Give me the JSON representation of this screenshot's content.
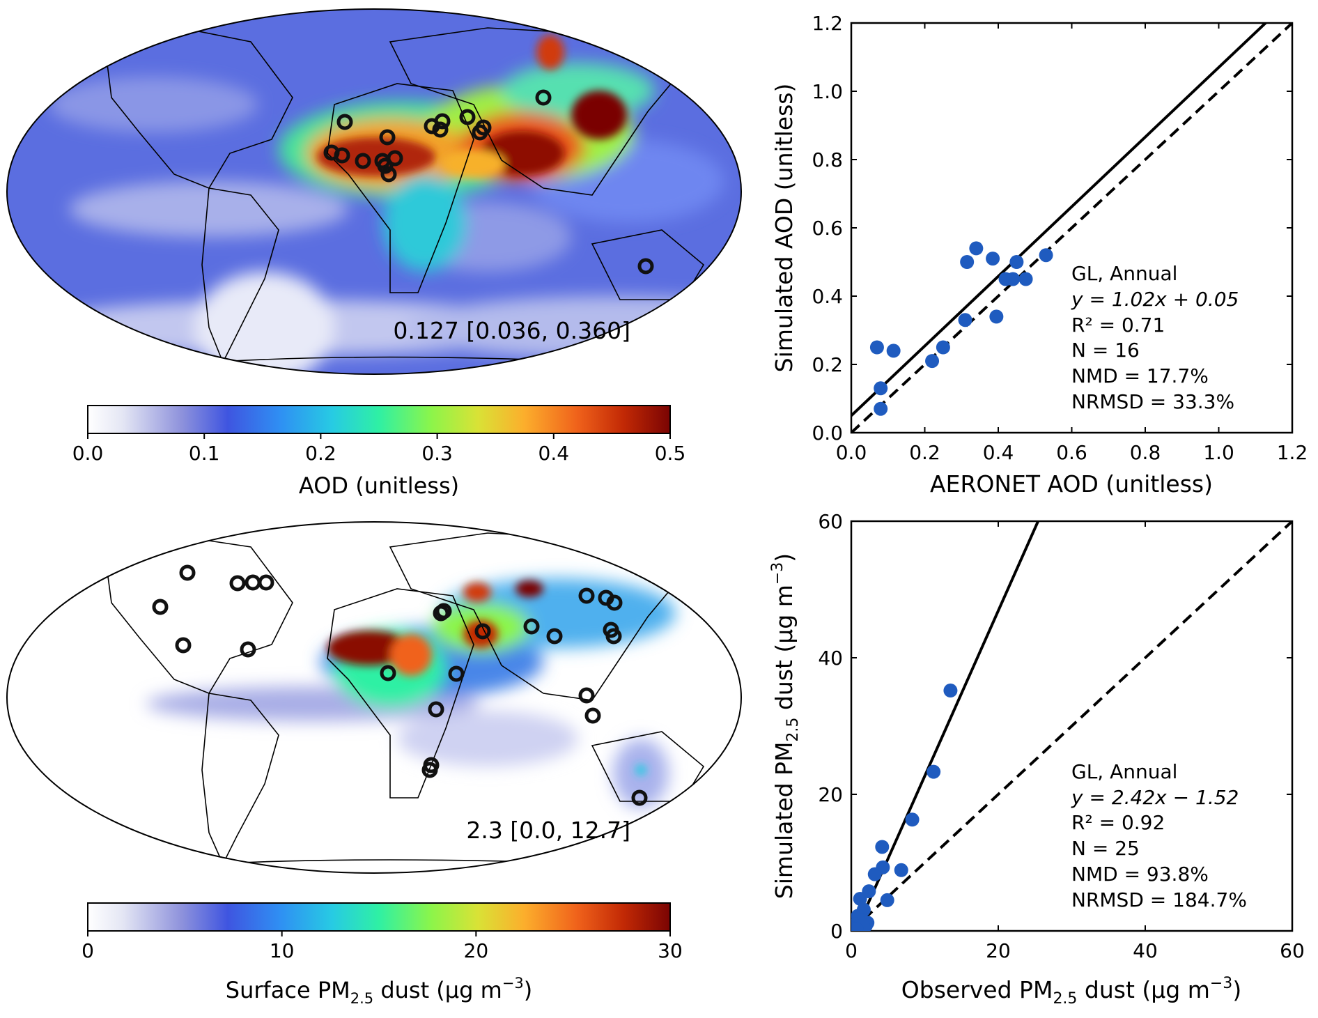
{
  "maps": [
    {
      "annotation": "0.127 [0.036, 0.360]",
      "colorbar": {
        "label": "AOD (unitless)",
        "ticks": [
          "0.0",
          "0.1",
          "0.2",
          "0.3",
          "0.4",
          "0.5"
        ],
        "range": [
          0,
          0.5
        ],
        "colormap": "turbo-like (white → blue → cyan → green → yellow → orange → red → dark red)"
      }
    },
    {
      "annotation": "2.3 [0.0, 12.7]",
      "colorbar": {
        "label_main": "Surface PM",
        "label_sub": "2.5",
        "label_rest": " dust (μg m",
        "label_sup": "−3",
        "label_end": ")",
        "ticks": [
          "0",
          "10",
          "20",
          "30"
        ],
        "range": [
          0,
          30
        ],
        "colormap": "turbo-like (white → blue → cyan → green → yellow → orange → red → dark red)"
      }
    }
  ],
  "scatter_labels": {
    "top": {
      "ylabel": "Simulated AOD (unitless)",
      "xlabel": "AERONET AOD (unitless)",
      "stats": [
        "GL, Annual",
        "y = 1.02x + 0.05",
        "R² = 0.71",
        "N = 16",
        "NMD = 17.7%",
        "NRMSD = 33.3%"
      ]
    },
    "bottom": {
      "ylabel_main": "Simulated PM",
      "ylabel_sub": "2.5",
      "ylabel_rest": " dust (μg m",
      "ylabel_sup": "−3",
      "ylabel_end": ")",
      "xlabel_main": "Observed PM",
      "xlabel_sub": "2.5",
      "xlabel_rest": " dust (μg m",
      "xlabel_sup": "−3",
      "xlabel_end": ")",
      "stats": [
        "GL, Annual",
        "y = 2.42x − 1.52",
        "R² = 0.92",
        "N = 25",
        "NMD = 93.8%",
        "NRMSD = 184.7%"
      ]
    }
  },
  "chart_data": [
    {
      "type": "scatter",
      "xlim": [
        0,
        1.2
      ],
      "ylim": [
        0,
        1.2
      ],
      "x_ticks": [
        "0.0",
        "0.2",
        "0.4",
        "0.6",
        "0.8",
        "1.0",
        "1.2"
      ],
      "y_ticks": [
        "0.0",
        "0.2",
        "0.4",
        "0.6",
        "0.8",
        "1.0",
        "1.2"
      ],
      "marker_color": "#1f5bbf",
      "points": [
        {
          "x": 0.07,
          "y": 0.25
        },
        {
          "x": 0.08,
          "y": 0.13
        },
        {
          "x": 0.08,
          "y": 0.07
        },
        {
          "x": 0.115,
          "y": 0.24
        },
        {
          "x": 0.22,
          "y": 0.21
        },
        {
          "x": 0.25,
          "y": 0.25
        },
        {
          "x": 0.31,
          "y": 0.33
        },
        {
          "x": 0.315,
          "y": 0.5
        },
        {
          "x": 0.34,
          "y": 0.54
        },
        {
          "x": 0.385,
          "y": 0.51
        },
        {
          "x": 0.395,
          "y": 0.34
        },
        {
          "x": 0.42,
          "y": 0.45
        },
        {
          "x": 0.45,
          "y": 0.5
        },
        {
          "x": 0.475,
          "y": 0.45
        },
        {
          "x": 0.53,
          "y": 0.52
        },
        {
          "x": 0.44,
          "y": 0.45
        }
      ],
      "fit_line": {
        "slope": 1.02,
        "intercept": 0.05,
        "style": "solid"
      },
      "one_to_one": {
        "style": "dashed"
      }
    },
    {
      "type": "scatter",
      "xlim": [
        0,
        60
      ],
      "ylim": [
        0,
        60
      ],
      "x_ticks": [
        "0",
        "20",
        "40",
        "60"
      ],
      "y_ticks": [
        "0",
        "20",
        "40",
        "60"
      ],
      "marker_color": "#1f5bbf",
      "points": [
        {
          "x": 13.5,
          "y": 35.2
        },
        {
          "x": 11.2,
          "y": 23.3
        },
        {
          "x": 8.3,
          "y": 16.3
        },
        {
          "x": 4.2,
          "y": 12.3
        },
        {
          "x": 4.3,
          "y": 9.3
        },
        {
          "x": 6.8,
          "y": 8.9
        },
        {
          "x": 3.2,
          "y": 8.3
        },
        {
          "x": 2.4,
          "y": 5.8
        },
        {
          "x": 1.2,
          "y": 4.7
        },
        {
          "x": 4.9,
          "y": 4.5
        },
        {
          "x": 1.7,
          "y": 3.1
        },
        {
          "x": 0.9,
          "y": 2.2
        },
        {
          "x": 1.5,
          "y": 1.5
        },
        {
          "x": 0.6,
          "y": 1.0
        },
        {
          "x": 0.4,
          "y": 0.6
        },
        {
          "x": 2.0,
          "y": 0.8
        },
        {
          "x": 0.3,
          "y": 0.3
        },
        {
          "x": 1.0,
          "y": 0.4
        },
        {
          "x": 0.8,
          "y": 0.7
        },
        {
          "x": 1.3,
          "y": 0.5
        },
        {
          "x": 0.5,
          "y": 0.2
        },
        {
          "x": 2.2,
          "y": 1.2
        },
        {
          "x": 0.2,
          "y": 0.4
        },
        {
          "x": 1.6,
          "y": 0.9
        },
        {
          "x": 0.7,
          "y": 0.3
        }
      ],
      "fit_line": {
        "slope": 2.42,
        "intercept": -1.52,
        "style": "solid"
      },
      "one_to_one": {
        "style": "dashed"
      }
    }
  ]
}
